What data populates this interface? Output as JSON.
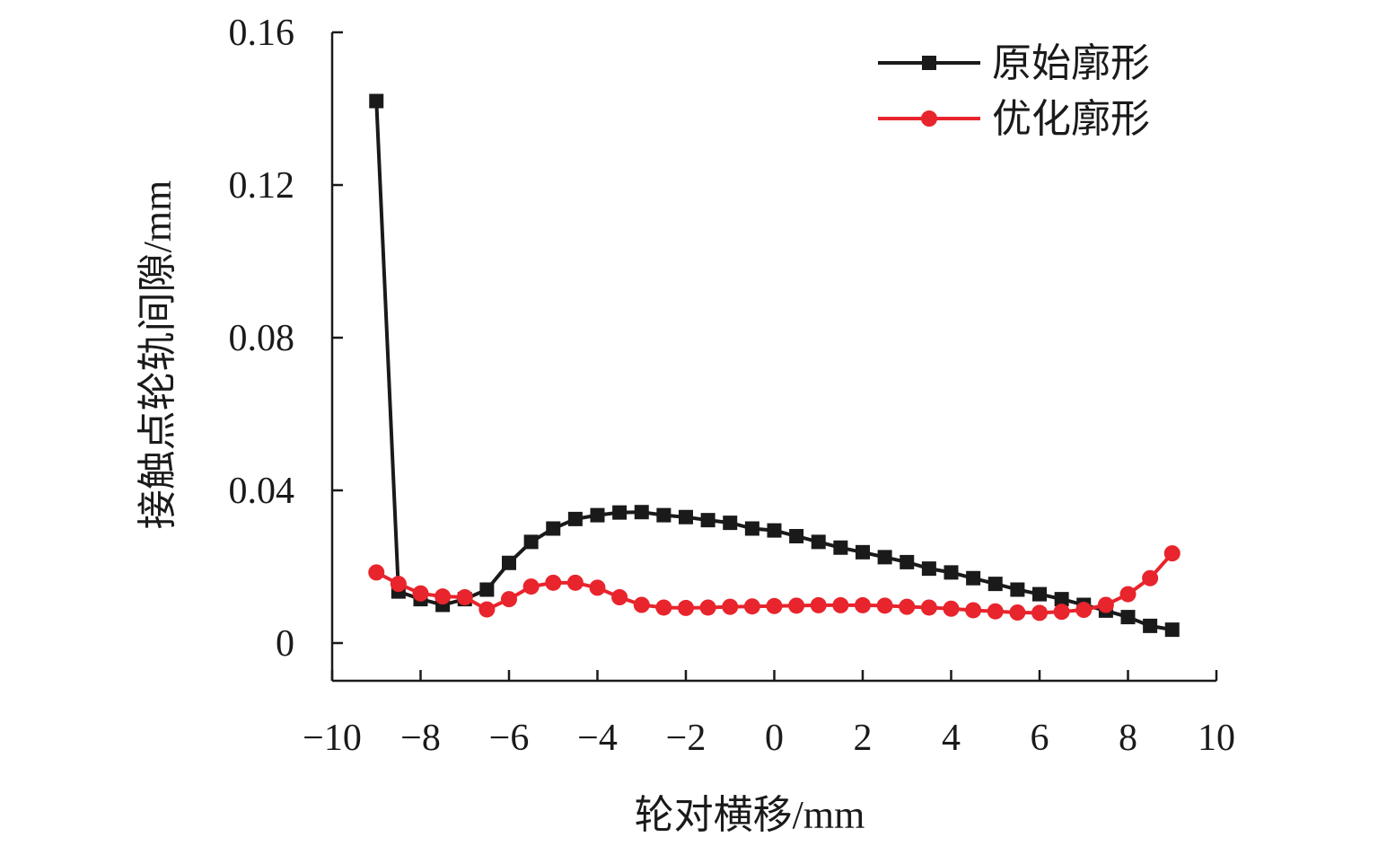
{
  "chart_data": {
    "type": "line",
    "title": "",
    "xlabel": "轮对横移/mm",
    "ylabel": "接触点轮轨间隙/mm",
    "xlim": [
      -10,
      10
    ],
    "ylim": [
      0,
      0.16
    ],
    "xticks": [
      -10,
      -8,
      -6,
      -4,
      -2,
      0,
      2,
      4,
      6,
      8,
      10
    ],
    "xtick_labels": [
      "−10",
      "−8",
      "−6",
      "−4",
      "−2",
      "0",
      "2",
      "4",
      "6",
      "8",
      "10"
    ],
    "yticks": [
      0,
      0.04,
      0.08,
      0.12,
      0.16
    ],
    "ytick_labels": [
      "0",
      "0.04",
      "0.08",
      "0.12",
      "0.16"
    ],
    "grid": false,
    "legend_position": "top-right",
    "x": [
      -9,
      -8.5,
      -8,
      -7.5,
      -7,
      -6.5,
      -6,
      -5.5,
      -5,
      -4.5,
      -4,
      -3.5,
      -3,
      -2.5,
      -2,
      -1.5,
      -1,
      -0.5,
      0,
      0.5,
      1,
      1.5,
      2,
      2.5,
      3,
      3.5,
      4,
      4.5,
      5,
      5.5,
      6,
      6.5,
      7,
      7.5,
      8,
      8.5,
      9
    ],
    "series": [
      {
        "name": "原始廓形",
        "color": "#1a1a1a",
        "marker": "square",
        "values": [
          0.142,
          0.0135,
          0.0115,
          0.01,
          0.0115,
          0.014,
          0.021,
          0.0265,
          0.03,
          0.0325,
          0.0335,
          0.0342,
          0.0343,
          0.0335,
          0.033,
          0.0322,
          0.0315,
          0.03,
          0.0295,
          0.028,
          0.0265,
          0.025,
          0.0238,
          0.0225,
          0.0212,
          0.0195,
          0.0185,
          0.017,
          0.0155,
          0.014,
          0.0128,
          0.0115,
          0.01,
          0.0085,
          0.0068,
          0.0045,
          0.0035
        ]
      },
      {
        "name": "优化廓形",
        "color": "#e8242c",
        "marker": "circle",
        "values": [
          0.0185,
          0.0155,
          0.013,
          0.0122,
          0.012,
          0.0088,
          0.0115,
          0.0148,
          0.0158,
          0.0158,
          0.0145,
          0.012,
          0.01,
          0.0093,
          0.0092,
          0.0093,
          0.0095,
          0.0096,
          0.0097,
          0.0098,
          0.0099,
          0.0099,
          0.0099,
          0.0098,
          0.0095,
          0.0093,
          0.009,
          0.0086,
          0.0083,
          0.008,
          0.0079,
          0.0082,
          0.0087,
          0.01,
          0.0128,
          0.017,
          0.0235
        ]
      }
    ]
  }
}
